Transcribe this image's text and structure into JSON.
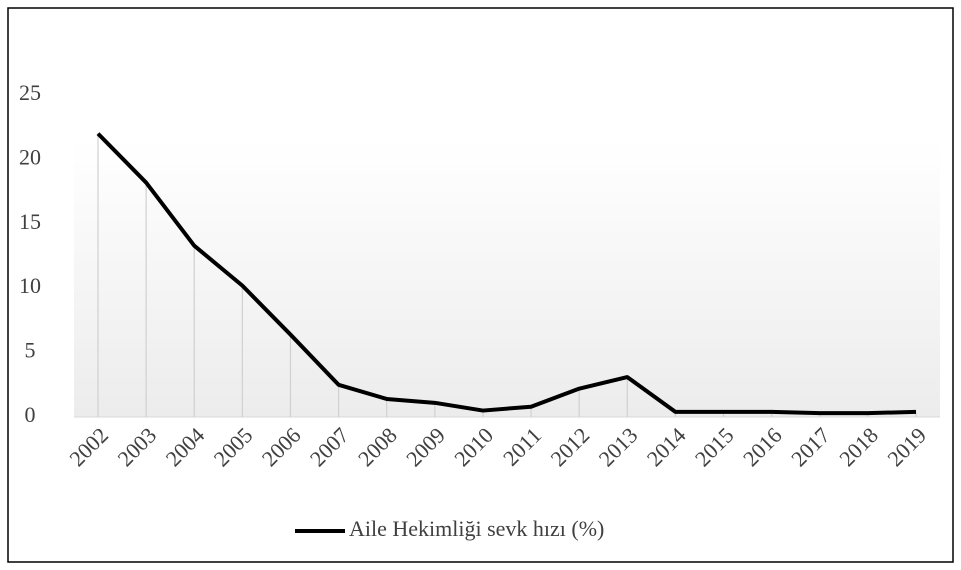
{
  "chart_data": {
    "type": "line",
    "categories": [
      "2002",
      "2003",
      "2004",
      "2005",
      "2006",
      "2007",
      "2008",
      "2009",
      "2010",
      "2011",
      "2012",
      "2013",
      "2014",
      "2015",
      "2016",
      "2017",
      "2018",
      "2019"
    ],
    "series": [
      {
        "name": "Aile Hekimliği sevk hızı (%)",
        "color": "#000000",
        "values": [
          22,
          18.2,
          13.3,
          10.2,
          6.4,
          2.5,
          1.4,
          1.1,
          0.5,
          0.8,
          2.2,
          3.1,
          0.4,
          0.4,
          0.4,
          0.3,
          0.3,
          0.4
        ]
      }
    ],
    "ylim": [
      0,
      25
    ],
    "yticks": [
      0,
      5,
      10,
      15,
      20,
      25
    ],
    "drop_lines": true,
    "legend": "bottom"
  }
}
